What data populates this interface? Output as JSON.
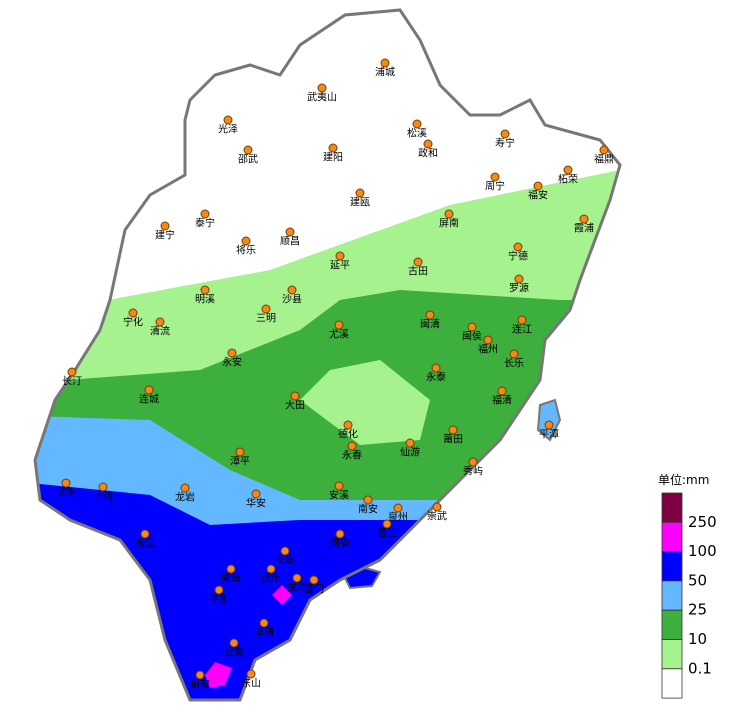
{
  "map": {
    "cities": [
      "浦城",
      "武夷山",
      "光泽",
      "松溪",
      "政和",
      "寿宁",
      "邵武",
      "建阳",
      "福鼎",
      "柘荣",
      "周宁",
      "福安",
      "建瓯",
      "泰宁",
      "建宁",
      "将乐",
      "顺昌",
      "屏南",
      "霞浦",
      "宁德",
      "延平",
      "古田",
      "罗源",
      "明溪",
      "沙县",
      "宁化",
      "清流",
      "三明",
      "尤溪",
      "闽清",
      "闽侯",
      "连江",
      "福州",
      "长乐",
      "永安",
      "长汀",
      "永泰",
      "连城",
      "大田",
      "福清",
      "平潭",
      "德化",
      "永春",
      "仙游",
      "莆田",
      "漳平",
      "秀屿",
      "龙岩",
      "武平",
      "上杭",
      "安溪",
      "华安",
      "南安",
      "泉州",
      "崇武",
      "晋江",
      "永定",
      "同安",
      "长泰",
      "南靖",
      "漳州",
      "龙海",
      "厦门",
      "平和",
      "漳浦",
      "云霄",
      "东山",
      "诏安"
    ],
    "legend": {
      "title": "单位:mm",
      "items": [
        {
          "label": 250,
          "color": "#7f0040"
        },
        {
          "label": 100,
          "color": "#ff00ff"
        },
        {
          "label": 50,
          "color": "#0000ff"
        },
        {
          "label": 25,
          "color": "#63b8ff"
        },
        {
          "label": 10,
          "color": "#3daf3d"
        },
        {
          "label": 0.1,
          "color": "#a6f28f"
        }
      ],
      "base_color": "#ffffff"
    }
  }
}
